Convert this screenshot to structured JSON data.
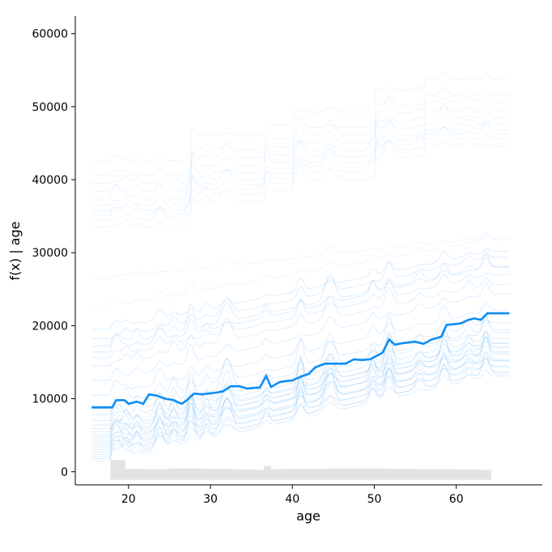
{
  "chart_data": {
    "type": "line",
    "xlabel": "age",
    "ylabel": "f(x) | age",
    "xlim": [
      13.5,
      70.5
    ],
    "ylim": [
      -1800,
      62400
    ],
    "x_ticks": [
      20,
      30,
      40,
      50,
      60
    ],
    "y_ticks": [
      0,
      10000,
      20000,
      30000,
      40000,
      50000,
      60000
    ],
    "average_color": "#0d8df2",
    "ice_color": "#77bdfa",
    "histogram_color": "#e3e3e3",
    "grid": false,
    "legend": "none",
    "average_curve": [
      [
        15.5,
        8800
      ],
      [
        18,
        8800
      ],
      [
        18.5,
        9800
      ],
      [
        19.5,
        9800
      ],
      [
        20,
        9300
      ],
      [
        21,
        9600
      ],
      [
        21.8,
        9300
      ],
      [
        22.5,
        10600
      ],
      [
        23.5,
        10400
      ],
      [
        24.5,
        10000
      ],
      [
        25.5,
        9800
      ],
      [
        26.5,
        9300
      ],
      [
        27,
        9700
      ],
      [
        28,
        10700
      ],
      [
        29,
        10600
      ],
      [
        30.5,
        10800
      ],
      [
        31.5,
        11000
      ],
      [
        32.5,
        11700
      ],
      [
        33.5,
        11700
      ],
      [
        34.5,
        11400
      ],
      [
        35.5,
        11500
      ],
      [
        36,
        11500
      ],
      [
        36.8,
        13100
      ],
      [
        37.4,
        11600
      ],
      [
        38.5,
        12300
      ],
      [
        40,
        12500
      ],
      [
        41,
        13000
      ],
      [
        42,
        13400
      ],
      [
        42.8,
        14300
      ],
      [
        44,
        14800
      ],
      [
        45.5,
        14800
      ],
      [
        46.5,
        14800
      ],
      [
        47.5,
        15400
      ],
      [
        48.5,
        15300
      ],
      [
        49.5,
        15400
      ],
      [
        51,
        16300
      ],
      [
        51.8,
        18100
      ],
      [
        52.5,
        17400
      ],
      [
        53.5,
        17600
      ],
      [
        55,
        17800
      ],
      [
        56,
        17500
      ],
      [
        57,
        18100
      ],
      [
        58.2,
        18500
      ],
      [
        58.8,
        20100
      ],
      [
        60.5,
        20300
      ],
      [
        61.5,
        20800
      ],
      [
        62.2,
        21000
      ],
      [
        63,
        20800
      ],
      [
        63.8,
        21700
      ],
      [
        66.5,
        21700
      ]
    ],
    "ice_curves": [
      {
        "base": 1500,
        "slope": 250,
        "spike": 1.2
      },
      {
        "base": 1800,
        "slope": 255,
        "spike": 1.0
      },
      {
        "base": 2100,
        "slope": 245,
        "spike": 1.4
      },
      {
        "base": 2400,
        "slope": 260,
        "spike": 0.9
      },
      {
        "base": 2700,
        "slope": 250,
        "spike": 1.1
      },
      {
        "base": 3000,
        "slope": 265,
        "spike": 1.3
      },
      {
        "base": 3300,
        "slope": 255,
        "spike": 0.8
      },
      {
        "base": 3600,
        "slope": 250,
        "spike": 1.0
      },
      {
        "base": 3900,
        "slope": 270,
        "spike": 1.2
      },
      {
        "base": 4200,
        "slope": 260,
        "spike": 0.9
      },
      {
        "base": 4500,
        "slope": 250,
        "spike": 1.1
      },
      {
        "base": 4800,
        "slope": 265,
        "spike": 1.3
      },
      {
        "base": 5100,
        "slope": 255,
        "spike": 1.0
      },
      {
        "base": 5500,
        "slope": 260,
        "spike": 0.8
      },
      {
        "base": 5900,
        "slope": 250,
        "spike": 1.2
      },
      {
        "base": 6400,
        "slope": 255,
        "spike": 1.0
      },
      {
        "base": 7000,
        "slope": 260,
        "spike": 0.9
      },
      {
        "base": 7800,
        "slope": 250,
        "spike": 1.1
      },
      {
        "base": 9000,
        "slope": 245,
        "spike": 1.0
      },
      {
        "base": 10500,
        "slope": 250,
        "spike": 0.7
      },
      {
        "base": 12500,
        "slope": 255,
        "spike": 0.6
      },
      {
        "base": 14500,
        "slope": 240,
        "spike": 0.8
      },
      {
        "base": 15600,
        "slope": 245,
        "spike": 0.6
      },
      {
        "base": 16400,
        "slope": 250,
        "spike": 0.7
      },
      {
        "base": 17200,
        "slope": 235,
        "spike": 0.9
      },
      {
        "base": 18200,
        "slope": 240,
        "spike": 0.6
      },
      {
        "base": 19500,
        "slope": 230,
        "spike": 0.5
      },
      {
        "base": 22500,
        "slope": 200,
        "spike": 0.4
      },
      {
        "base": 26500,
        "slope": 120,
        "spike": 0.3
      },
      {
        "base": 33500,
        "slope": 260,
        "spike": 1.0
      },
      {
        "base": 34500,
        "slope": 265,
        "spike": 1.0
      },
      {
        "base": 35200,
        "slope": 260,
        "spike": 1.1
      },
      {
        "base": 35800,
        "slope": 255,
        "spike": 0.9
      },
      {
        "base": 36500,
        "slope": 270,
        "spike": 1.0
      },
      {
        "base": 37400,
        "slope": 265,
        "spike": 1.2
      },
      {
        "base": 38400,
        "slope": 260,
        "spike": 0.8
      },
      {
        "base": 39500,
        "slope": 275,
        "spike": 1.0
      },
      {
        "base": 40600,
        "slope": 255,
        "spike": 0.7
      },
      {
        "base": 42500,
        "slope": 290,
        "spike": 0.6
      }
    ],
    "histogram": [
      [
        17.8,
        19.6,
        1600
      ],
      [
        19.6,
        22,
        400
      ],
      [
        22,
        25,
        350
      ],
      [
        25,
        29,
        450
      ],
      [
        29,
        33,
        380
      ],
      [
        33,
        35.5,
        300
      ],
      [
        35.5,
        36.5,
        250
      ],
      [
        36.5,
        37.4,
        800
      ],
      [
        37.4,
        39,
        350
      ],
      [
        39,
        44,
        380
      ],
      [
        44,
        52,
        420
      ],
      [
        52,
        55,
        400
      ],
      [
        55,
        60,
        340
      ],
      [
        60,
        63,
        300
      ],
      [
        63,
        64.3,
        250
      ]
    ]
  }
}
